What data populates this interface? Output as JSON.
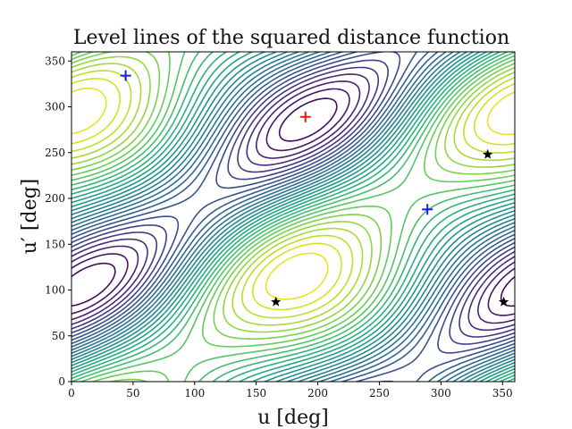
{
  "chart_data": {
    "type": "contour",
    "title": "Level lines of the squared distance function",
    "xlabel": "u [deg]",
    "ylabel": "u′ [deg]",
    "xlim": [
      0,
      360
    ],
    "ylim": [
      0,
      360
    ],
    "xticks": [
      0,
      50,
      100,
      150,
      200,
      250,
      300,
      350
    ],
    "yticks": [
      0,
      50,
      100,
      150,
      200,
      250,
      300,
      350
    ],
    "grid": false,
    "colormap": "viridis",
    "contour_levels": 30,
    "markers": {
      "minima": {
        "marker": "plus",
        "color": "#1a1aff",
        "points": [
          [
            44,
            334
          ],
          [
            289,
            188
          ]
        ]
      },
      "maximum": {
        "marker": "plus",
        "color": "#e41a1c",
        "points": [
          [
            190,
            289
          ]
        ]
      },
      "saddles": {
        "marker": "star",
        "color": "#000000",
        "points": [
          [
            166,
            87
          ],
          [
            338,
            248
          ],
          [
            351,
            87
          ]
        ]
      }
    }
  }
}
